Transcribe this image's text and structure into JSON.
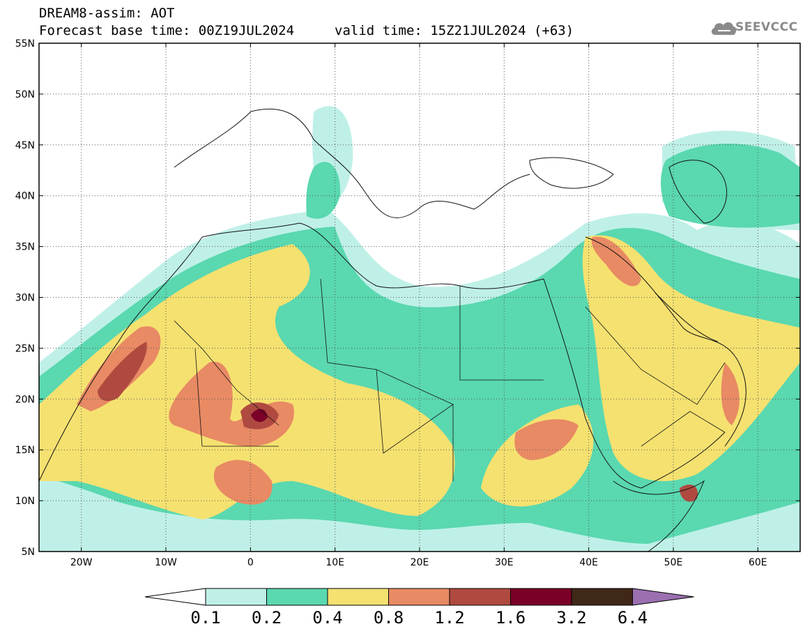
{
  "header": {
    "title": "DREAM8-assim: AOT",
    "base_time_line": "Forecast base time: 00Z19JUL2024",
    "valid_time_line": "valid time: 15Z21JUL2024 (+63)",
    "logo_text": "SEEVCCC",
    "logo_icon": "cloud-logo-icon"
  },
  "map": {
    "lon_range": [
      -25,
      65
    ],
    "lat_range": [
      5,
      55
    ],
    "lat_labels": [
      "55N",
      "50N",
      "45N",
      "40N",
      "35N",
      "30N",
      "25N",
      "20N",
      "15N",
      "10N",
      "5N"
    ],
    "lon_labels": [
      "20W",
      "10W",
      "0",
      "10E",
      "20E",
      "30E",
      "40E",
      "50E",
      "60E"
    ],
    "grid": "dotted"
  },
  "colorbar": {
    "levels": [
      "0.1",
      "0.2",
      "0.4",
      "0.8",
      "1.2",
      "1.6",
      "3.2",
      "6.4"
    ],
    "colors": [
      "#bff0e8",
      "#5ad8b0",
      "#f5e170",
      "#e88a64",
      "#b04a40",
      "#7a0028",
      "#402818",
      "#9b6fb0"
    ],
    "under_color": "#ffffff",
    "over_color": "#9b6fb0"
  }
}
